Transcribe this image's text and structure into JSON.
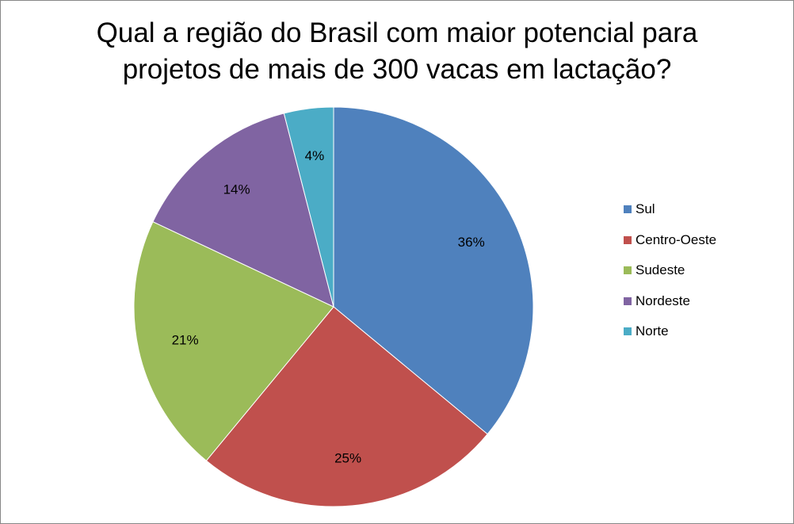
{
  "chart_data": {
    "type": "pie",
    "title": [
      "Qual a região do Brasil com maior potencial para",
      "projetos de mais de 300 vacas em lactação?"
    ],
    "legend_position": "right",
    "start_angle_deg": 0,
    "direction": "clockwise",
    "slices": [
      {
        "name": "Sul",
        "value": 36,
        "label": "36%",
        "color": "#4F81BD"
      },
      {
        "name": "Centro-Oeste",
        "value": 25,
        "label": "25%",
        "color": "#C0504D"
      },
      {
        "name": "Sudeste",
        "value": 21,
        "label": "21%",
        "color": "#9BBB59"
      },
      {
        "name": "Nordeste",
        "value": 14,
        "label": "14%",
        "color": "#8064A2"
      },
      {
        "name": "Norte",
        "value": 4,
        "label": "4%",
        "color": "#4BACC6"
      }
    ]
  }
}
